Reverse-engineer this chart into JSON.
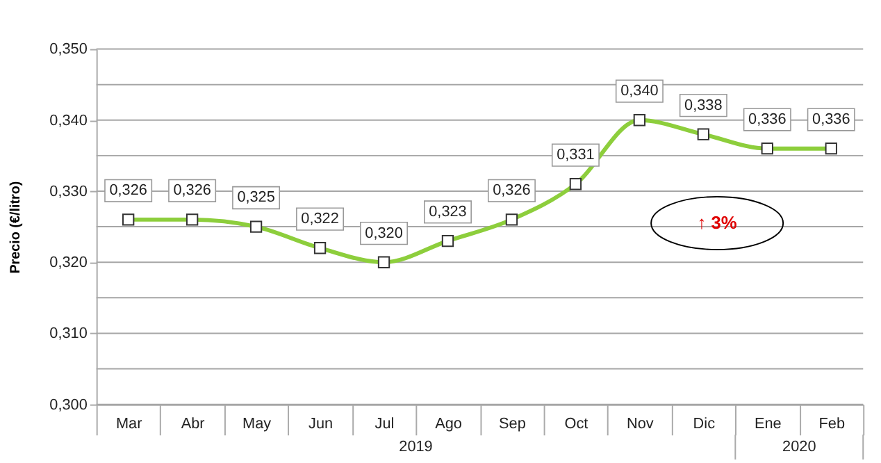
{
  "chart_data": {
    "type": "line",
    "ylabel": "Precio (€/litro)",
    "categories": [
      "Mar",
      "Abr",
      "May",
      "Jun",
      "Jul",
      "Ago",
      "Sep",
      "Oct",
      "Nov",
      "Dic",
      "Ene",
      "Feb"
    ],
    "series": [
      {
        "color": "#8dce3c",
        "values": [
          0.326,
          0.326,
          0.325,
          0.322,
          0.32,
          0.323,
          0.326,
          0.331,
          0.34,
          0.338,
          0.336,
          0.336
        ],
        "value_labels": [
          "0,326",
          "0,326",
          "0,325",
          "0,322",
          "0,320",
          "0,323",
          "0,326",
          "0,331",
          "0,340",
          "0,338",
          "0,336",
          "0,336"
        ]
      }
    ],
    "ylim": [
      0.3,
      0.35
    ],
    "yticks": [
      {
        "value": 0.3,
        "label": "0,300"
      },
      {
        "value": 0.305,
        "label": null
      },
      {
        "value": 0.31,
        "label": "0,310"
      },
      {
        "value": 0.315,
        "label": null
      },
      {
        "value": 0.32,
        "label": "0,320"
      },
      {
        "value": 0.325,
        "label": null
      },
      {
        "value": 0.33,
        "label": "0,330"
      },
      {
        "value": 0.335,
        "label": null
      },
      {
        "value": 0.34,
        "label": "0,340"
      },
      {
        "value": 0.345,
        "label": null
      },
      {
        "value": 0.35,
        "label": "0,350"
      }
    ],
    "grid": "y",
    "marker": "square",
    "line_style": "solid",
    "annotations": [
      "↑ 3%",
      "2019",
      "2020"
    ]
  }
}
